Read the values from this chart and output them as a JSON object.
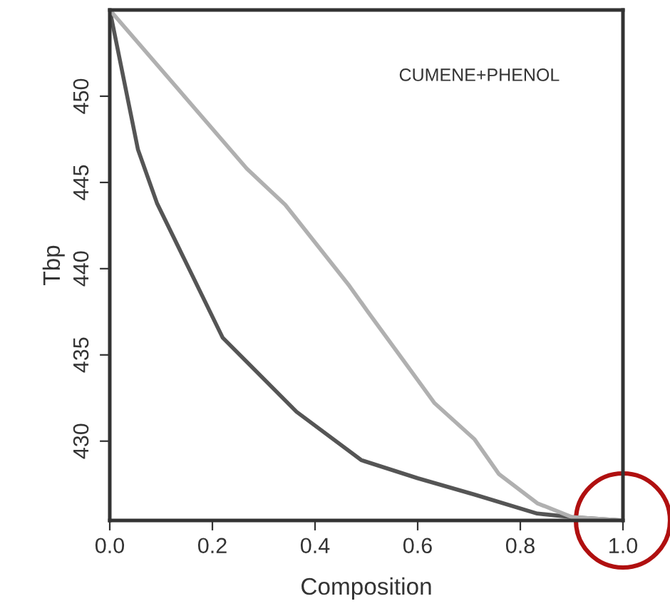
{
  "chart_data": {
    "type": "line",
    "xlabel": "Composition",
    "ylabel": "Tbp",
    "annotations": [
      "CUMENE+PHENOL"
    ],
    "series": [
      {
        "color": "#555555",
        "x": [
          0,
          0.055,
          0.092,
          0.22,
          0.364,
          0.49,
          0.6,
          0.711,
          0.833,
          0.9,
          1
        ],
        "values": [
          455,
          446.9,
          443.8,
          436,
          431.7,
          428.9,
          427.85,
          426.9,
          425.8,
          425.6,
          425.4
        ]
      },
      {
        "color": "#b0b0b0",
        "x": [
          0,
          0.267,
          0.342,
          0.467,
          0.503,
          0.633,
          0.711,
          0.758,
          0.833,
          0.9,
          1
        ],
        "values": [
          455,
          445.8,
          443.7,
          439.0,
          437.5,
          432.2,
          430.1,
          428.1,
          426.4,
          425.6,
          425.4
        ]
      }
    ],
    "xlim": [
      0,
      1
    ],
    "ylim": [
      425.4,
      455
    ],
    "xticks": [
      {
        "value": 0,
        "label": "0.0"
      },
      0.2,
      0.4,
      0.6,
      0.8,
      {
        "value": 1,
        "label": "1.0"
      }
    ],
    "yticks": [
      430,
      435,
      440,
      445,
      450
    ],
    "grid": false,
    "legend": false,
    "marker": "none",
    "line_style": "solid"
  }
}
